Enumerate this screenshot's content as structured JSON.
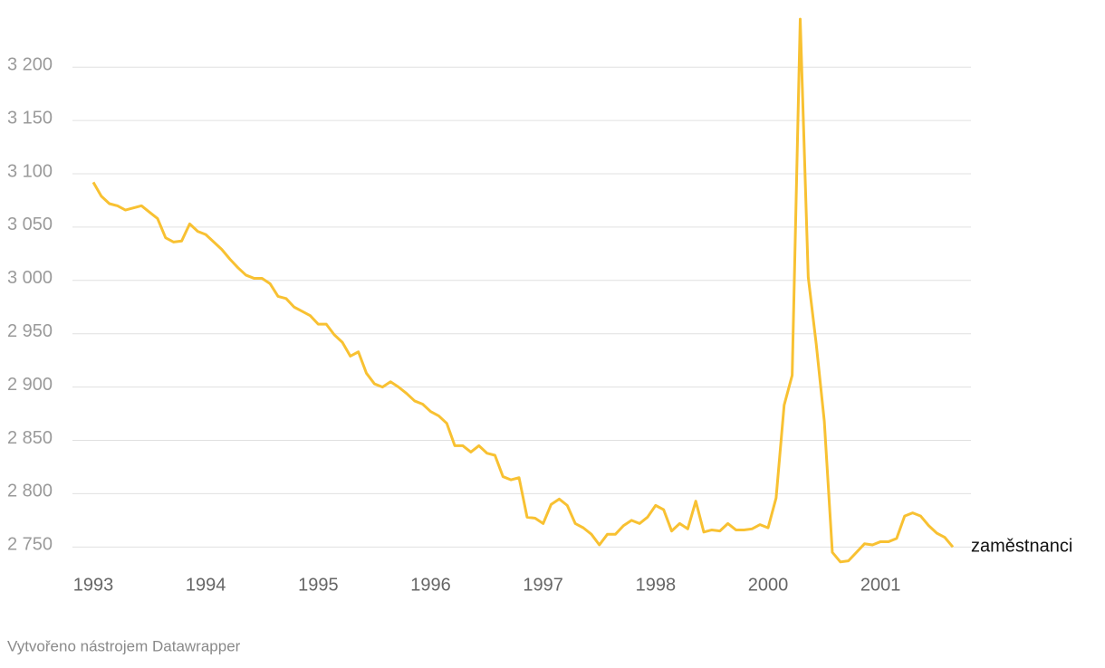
{
  "chart_data": {
    "type": "line",
    "categories": [
      "1993",
      null,
      null,
      null,
      null,
      null,
      null,
      null,
      null,
      null,
      null,
      null,
      null,
      null,
      "1994",
      null,
      null,
      null,
      null,
      null,
      null,
      null,
      null,
      null,
      null,
      null,
      null,
      null,
      "1995",
      null,
      null,
      null,
      null,
      null,
      null,
      null,
      null,
      null,
      null,
      null,
      null,
      null,
      "1996",
      null,
      null,
      null,
      null,
      null,
      null,
      null,
      null,
      null,
      null,
      null,
      null,
      null,
      "1997",
      null,
      null,
      null,
      null,
      null,
      null,
      null,
      null,
      null,
      null,
      null,
      null,
      null,
      "1998",
      null,
      null,
      null,
      null,
      null,
      null,
      null,
      null,
      null,
      null,
      null,
      null,
      null,
      "2000",
      null,
      null,
      null,
      null,
      null,
      null,
      null,
      null,
      null,
      null,
      null,
      null,
      null,
      "2001",
      null,
      null,
      null,
      null,
      null,
      null,
      null,
      null,
      null
    ],
    "series": [
      {
        "name": "zaměstnanci",
        "color": "#f8c132",
        "values": [
          3092,
          3079,
          3072,
          3070,
          3066,
          3068,
          3070,
          3064,
          3058,
          3040,
          3036,
          3037,
          3053,
          3046,
          3043,
          3036,
          3029,
          3020,
          3012,
          3005,
          3002,
          3002,
          2997,
          2985,
          2983,
          2975,
          2971,
          2967,
          2959,
          2959,
          2949,
          2942,
          2929,
          2933,
          2913,
          2903,
          2900,
          2905,
          2900,
          2894,
          2887,
          2884,
          2877,
          2873,
          2866,
          2845,
          2845,
          2839,
          2845,
          2838,
          2836,
          2816,
          2813,
          2815,
          2778,
          2777,
          2772,
          2790,
          2795,
          2789,
          2772,
          2768,
          2762,
          2752,
          2762,
          2762,
          2770,
          2775,
          2772,
          2778,
          2789,
          2785,
          2765,
          2772,
          2767,
          2793,
          2764,
          2766,
          2765,
          2772,
          2766,
          2766,
          2767,
          2771,
          2768,
          2796,
          2883,
          2911,
          3245,
          3003,
          2940,
          2868,
          2745,
          2736,
          2737,
          2745,
          2753,
          2752,
          2755,
          2755,
          2758,
          2779,
          2782,
          2779,
          2770,
          2763,
          2759,
          2750
        ]
      }
    ],
    "ylim": [
      2735,
      3246
    ],
    "yticks": [
      {
        "value": 2750,
        "label": "2 750"
      },
      {
        "value": 2800,
        "label": "2 800"
      },
      {
        "value": 2850,
        "label": "2 850"
      },
      {
        "value": 2900,
        "label": "2 900"
      },
      {
        "value": 2950,
        "label": "2 950"
      },
      {
        "value": 3000,
        "label": "3 000"
      },
      {
        "value": 3050,
        "label": "3 050"
      },
      {
        "value": 3100,
        "label": "3 100"
      },
      {
        "value": 3150,
        "label": "3 150"
      },
      {
        "value": 3200,
        "label": "3 200"
      }
    ],
    "grid": true,
    "credit": "Vytvořeno nástrojem Datawrapper"
  }
}
